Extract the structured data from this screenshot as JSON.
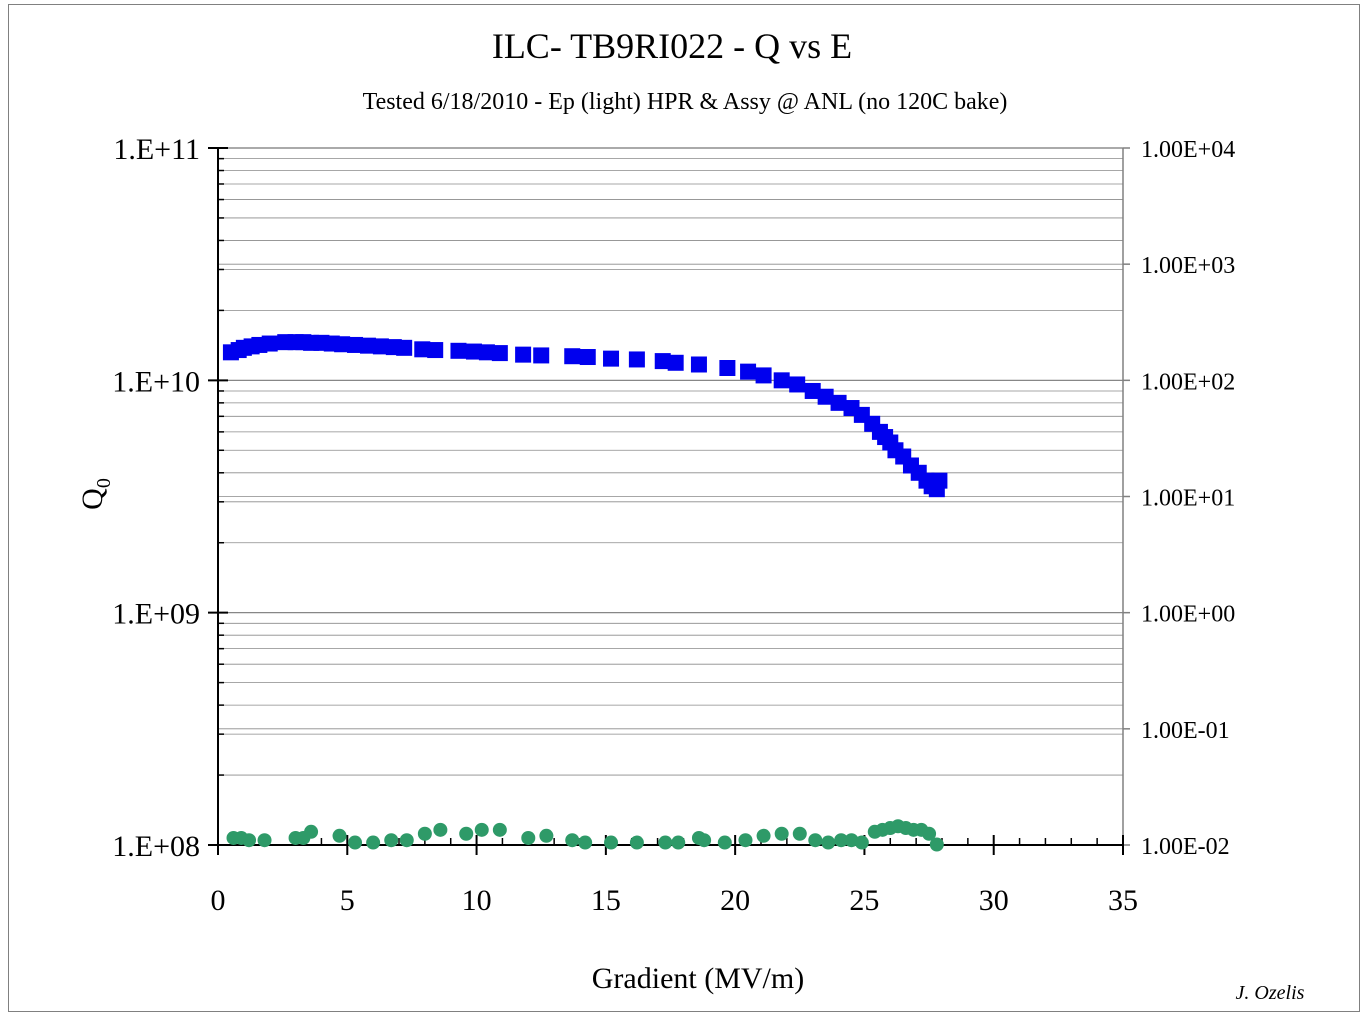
{
  "chart_data": {
    "type": "scatter",
    "title": "ILC- TB9RI022 - Q vs E",
    "subtitle": "Tested 6/18/2010 - Ep (light) HPR & Assy @ ANL (no 120C bake)",
    "xlabel": "Gradient (MV/m)",
    "ylabel": "Q",
    "ylabel_subscript": "0",
    "author": "J. Ozelis",
    "xlim": [
      0,
      35
    ],
    "ylim": [
      100000000,
      100000000000
    ],
    "y_scale": "log",
    "y2lim": [
      0.01,
      10000
    ],
    "y2_scale": "log",
    "x_ticks": [
      "0",
      "5",
      "10",
      "15",
      "20",
      "25",
      "30",
      "35"
    ],
    "y_ticks": [
      "1.E+08",
      "1.E+09",
      "1.E+10",
      "1.E+11"
    ],
    "y2_ticks": [
      "1.00E-02",
      "1.00E-01",
      "1.00E+00",
      "1.00E+01",
      "1.00E+02",
      "1.00E+03",
      "1.00E+04"
    ],
    "grid": "horizontal",
    "colors": {
      "q0": "#0000ee",
      "radiation": "#2e9a68",
      "axis_right": "#808080"
    },
    "series": [
      {
        "axis": "left",
        "marker": "square",
        "x": [
          0.5,
          0.8,
          1.0,
          1.3,
          1.6,
          2.0,
          2.6,
          3.0,
          3.3,
          3.6,
          4.0,
          4.4,
          4.8,
          5.3,
          5.8,
          6.3,
          6.8,
          7.2,
          7.9,
          8.4,
          9.3,
          9.9,
          10.4,
          10.9,
          11.8,
          12.5,
          13.7,
          14.3,
          15.2,
          16.2,
          17.2,
          17.7,
          18.6,
          19.7,
          20.5,
          21.1,
          21.8,
          22.4,
          23.0,
          23.5,
          24.0,
          24.5,
          24.9,
          25.3,
          25.6,
          25.8,
          26.0,
          26.2,
          26.5,
          26.8,
          27.1,
          27.4,
          27.6,
          27.8,
          27.9
        ],
        "y": [
          13200000000.0,
          13500000000.0,
          13800000000.0,
          14000000000.0,
          14200000000.0,
          14400000000.0,
          14600000000.0,
          14600000000.0,
          14600000000.0,
          14500000000.0,
          14500000000.0,
          14400000000.0,
          14300000000.0,
          14200000000.0,
          14100000000.0,
          14000000000.0,
          13900000000.0,
          13800000000.0,
          13600000000.0,
          13500000000.0,
          13400000000.0,
          13300000000.0,
          13200000000.0,
          13100000000.0,
          12900000000.0,
          12800000000.0,
          12700000000.0,
          12600000000.0,
          12400000000.0,
          12300000000.0,
          12100000000.0,
          11900000000.0,
          11700000000.0,
          11300000000.0,
          10900000000.0,
          10500000000.0,
          10000000000.0,
          9600000000.0,
          9000000000.0,
          8500000000.0,
          8000000000.0,
          7600000000.0,
          7100000000.0,
          6500000000.0,
          6000000000.0,
          5700000000.0,
          5400000000.0,
          5000000000.0,
          4700000000.0,
          4300000000.0,
          4000000000.0,
          3700000000.0,
          3500000000.0,
          3400000000.0,
          3700000000.0
        ]
      },
      {
        "axis": "right",
        "marker": "circle",
        "x": [
          0.6,
          0.9,
          1.2,
          1.8,
          3.0,
          3.3,
          3.6,
          4.7,
          5.3,
          6.0,
          6.7,
          7.3,
          8.0,
          8.6,
          9.6,
          10.2,
          10.9,
          12.0,
          12.7,
          13.7,
          14.2,
          15.2,
          16.2,
          17.3,
          17.8,
          18.6,
          18.8,
          19.6,
          20.4,
          21.1,
          21.8,
          22.5,
          23.1,
          23.6,
          24.1,
          24.5,
          24.9,
          25.4,
          25.7,
          26.0,
          26.3,
          26.6,
          26.9,
          27.2,
          27.5,
          27.8
        ],
        "y": [
          0.0115,
          0.0115,
          0.011,
          0.011,
          0.0115,
          0.0115,
          0.013,
          0.012,
          0.0105,
          0.0105,
          0.011,
          0.011,
          0.0125,
          0.0135,
          0.0125,
          0.0135,
          0.0135,
          0.0115,
          0.012,
          0.011,
          0.0105,
          0.0105,
          0.0105,
          0.0105,
          0.0105,
          0.0115,
          0.011,
          0.0105,
          0.011,
          0.012,
          0.0125,
          0.0125,
          0.011,
          0.0105,
          0.011,
          0.011,
          0.0105,
          0.013,
          0.0135,
          0.014,
          0.0145,
          0.014,
          0.0135,
          0.0135,
          0.0125,
          0.0101
        ]
      }
    ]
  }
}
